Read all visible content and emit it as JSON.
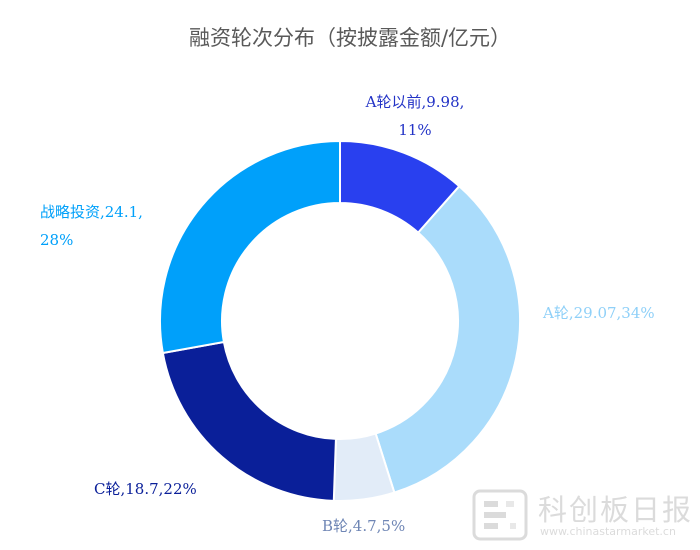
{
  "chart_data": {
    "type": "pie",
    "style": "donut",
    "title": "融资轮次分布（按披露金额/亿元）",
    "legend": "none",
    "slices": [
      {
        "name": "A轮以前",
        "value": 9.98,
        "percent": "11%",
        "color": "#2940ef",
        "label_color": "#2333c6",
        "label_line1": "A轮以前,9.98,",
        "label_line2": "11%"
      },
      {
        "name": "A轮",
        "value": 29.07,
        "percent": "34%",
        "color": "#aadcfb",
        "label_color": "#8fd0f8",
        "label_line1": "A轮,29.07,34%",
        "label_line2": ""
      },
      {
        "name": "B轮",
        "value": 4.7,
        "percent": "5%",
        "color": "#e2ecf8",
        "label_color": "#6f86b5",
        "label_line1": "B轮,4.7,5%",
        "label_line2": ""
      },
      {
        "name": "C轮",
        "value": 18.7,
        "percent": "22%",
        "color": "#0a1f99",
        "label_color": "#0a1f99",
        "label_line1": "C轮,18.7,22%",
        "label_line2": ""
      },
      {
        "name": "战略投资",
        "value": 24.1,
        "percent": "28%",
        "color": "#00a0fa",
        "label_color": "#00a0fa",
        "label_line1": "战略投资,24.1,",
        "label_line2": "28%"
      }
    ]
  },
  "watermark": {
    "text": "科创板日报",
    "url": "www.chinastarmarket.cn"
  }
}
